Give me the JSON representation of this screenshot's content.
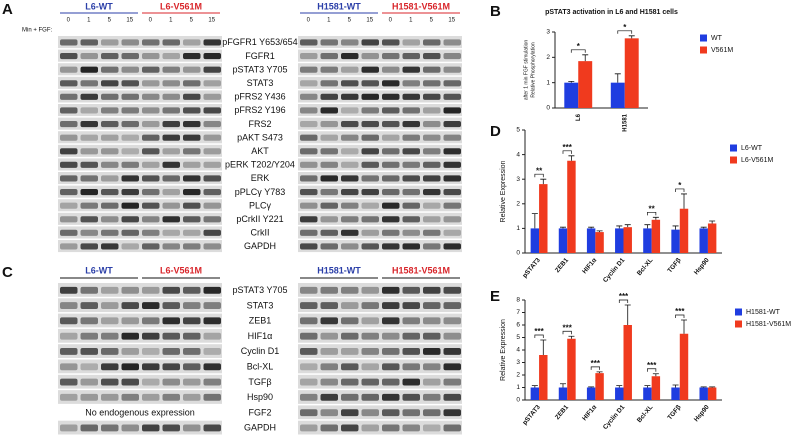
{
  "blot_a": {
    "label": "A",
    "treatment_label": "Min + FGF:",
    "time_points": [
      0,
      1,
      5,
      15
    ],
    "groups": [
      "L6-WT",
      "L6-V561M",
      "H1581-WT",
      "H1581-V561M"
    ],
    "rows": [
      "pFGFR1 Y653/654",
      "FGFR1",
      "pSTAT3 Y705",
      "STAT3",
      "pFRS2 Y436",
      "pFRS2 Y196",
      "FRS2",
      "pAKT S473",
      "AKT",
      "pERK T202/Y204",
      "ERK",
      "pPLCγ Y783",
      "PLCγ",
      "pCrkII Y221",
      "CrkII",
      "GAPDH"
    ]
  },
  "blot_c": {
    "label": "C",
    "groups": [
      "L6-WT",
      "L6-V561M",
      "H1581-WT",
      "H1581-V561M"
    ],
    "rows": [
      "pSTAT3 Y705",
      "STAT3",
      "ZEB1",
      "HIF1α",
      "Cyclin D1",
      "Bcl-XL",
      "TGFβ",
      "Hsp90",
      "FGF2",
      "GAPDH"
    ],
    "note": "No endogenous expression"
  },
  "chart_data": [
    {
      "type": "bar",
      "panel": "B",
      "title": "pSTAT3 activation in L6 and H1581 cells",
      "y_label": [
        "Relative Phosphorylation",
        "after 1 min FGF stimulation"
      ],
      "categories": [
        "L6",
        "H1581"
      ],
      "series": [
        {
          "name": "WT",
          "color": "#1f3de0",
          "values": [
            1.0,
            1.0
          ],
          "errors": [
            0.05,
            0.35
          ]
        },
        {
          "name": "V561M",
          "color": "#f03a1e",
          "values": [
            1.85,
            2.75
          ],
          "errors": [
            0.25,
            0.1
          ]
        }
      ],
      "annotations": [
        "*",
        "*"
      ],
      "ylim": [
        0,
        3
      ],
      "yticks": [
        0,
        1,
        2,
        3
      ]
    },
    {
      "type": "bar",
      "panel": "D",
      "y_label": [
        "Relative Expression"
      ],
      "categories": [
        "pSTAT3",
        "ZEB1",
        "HIF1α",
        "Cyclin D1",
        "Bcl-XL",
        "TGFβ",
        "Hsp90"
      ],
      "series": [
        {
          "name": "L6-WT",
          "color": "#1f3de0",
          "values": [
            1.0,
            1.0,
            1.0,
            1.0,
            1.0,
            0.95,
            1.0
          ],
          "errors": [
            0.6,
            0.05,
            0.05,
            0.1,
            0.15,
            0.15,
            0.05
          ]
        },
        {
          "name": "L6-V561M",
          "color": "#f03a1e",
          "values": [
            2.8,
            3.75,
            0.85,
            1.05,
            1.35,
            1.8,
            1.2
          ],
          "errors": [
            0.2,
            0.2,
            0.05,
            0.1,
            0.1,
            0.6,
            0.1
          ]
        }
      ],
      "annotations": [
        "**",
        "***",
        null,
        null,
        "**",
        "*",
        null
      ],
      "ylim": [
        0,
        5
      ],
      "yticks": [
        0,
        1,
        2,
        3,
        4,
        5
      ]
    },
    {
      "type": "bar",
      "panel": "E",
      "y_label": [
        "Relative Expression"
      ],
      "categories": [
        "pSTAT3",
        "ZEB1",
        "HIF1α",
        "Cyclin D1",
        "Bcl-XL",
        "TGFβ",
        "Hsp90"
      ],
      "series": [
        {
          "name": "H1581-WT",
          "color": "#1f3de0",
          "values": [
            1.0,
            1.0,
            1.0,
            1.0,
            1.0,
            1.0,
            1.0
          ],
          "errors": [
            0.15,
            0.3,
            0.05,
            0.15,
            0.15,
            0.2,
            0.05
          ]
        },
        {
          "name": "H1581-V561M",
          "color": "#f03a1e",
          "values": [
            3.6,
            4.9,
            2.15,
            6.0,
            1.9,
            5.3,
            1.0
          ],
          "errors": [
            1.2,
            0.2,
            0.1,
            1.6,
            0.2,
            1.1,
            0.05
          ]
        }
      ],
      "annotations": [
        "***",
        "***",
        "***",
        "***",
        "***",
        "***",
        null
      ],
      "ylim": [
        0,
        8
      ],
      "yticks": [
        0,
        1,
        2,
        3,
        4,
        5,
        6,
        7,
        8
      ]
    }
  ]
}
